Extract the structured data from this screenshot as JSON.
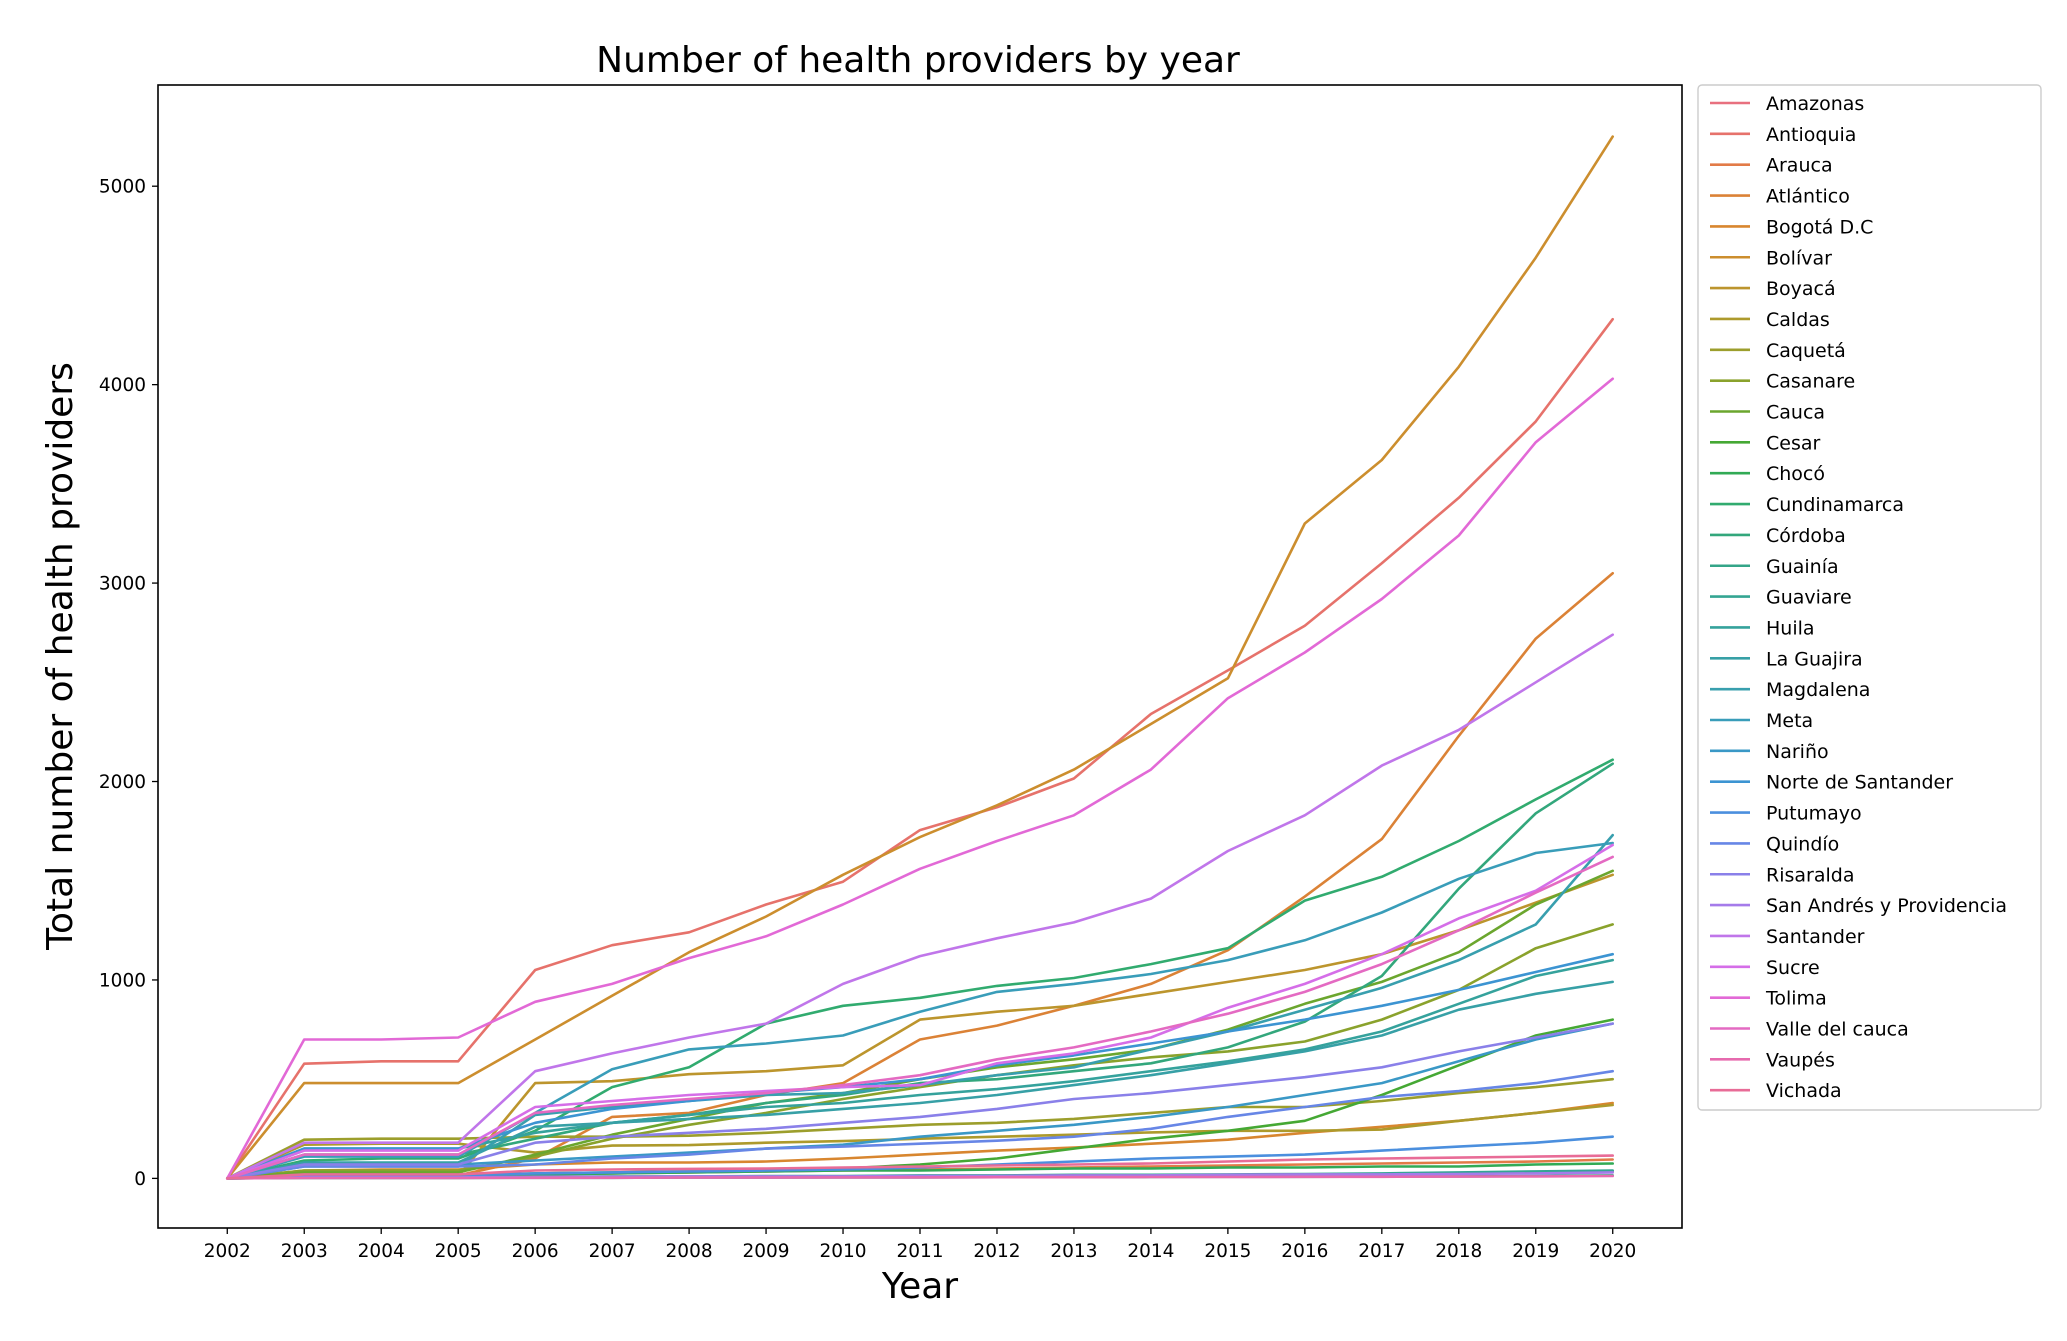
{
  "chart_data": {
    "type": "line",
    "title": "Number of health providers by year",
    "xlabel": "Year",
    "ylabel": "Total number of health providers",
    "x": [
      2002,
      2003,
      2004,
      2005,
      2006,
      2007,
      2008,
      2009,
      2010,
      2011,
      2012,
      2013,
      2014,
      2015,
      2016,
      2017,
      2018,
      2019,
      2020
    ],
    "xlim": [
      2001.1,
      2020.9
    ],
    "ylim": [
      -250,
      5510
    ],
    "yticks": [
      0,
      1000,
      2000,
      3000,
      4000,
      5000
    ],
    "grid": false,
    "legend_position": "outside-right",
    "series": [
      {
        "name": "Amazonas",
        "color": "#e8707f",
        "values": [
          0,
          3,
          3,
          3,
          5,
          6,
          7,
          8,
          9,
          10,
          11,
          12,
          13,
          15,
          18,
          20,
          25,
          30,
          35
        ]
      },
      {
        "name": "Antioquia",
        "color": "#e6726b",
        "values": [
          0,
          578,
          590,
          590,
          1050,
          1175,
          1240,
          1380,
          1495,
          1755,
          1870,
          2015,
          2340,
          2560,
          2785,
          3100,
          3430,
          3815,
          4330
        ]
      },
      {
        "name": "Arauca",
        "color": "#e27b48",
        "values": [
          0,
          10,
          10,
          10,
          20,
          25,
          30,
          35,
          40,
          45,
          50,
          55,
          60,
          65,
          70,
          75,
          80,
          85,
          95
        ]
      },
      {
        "name": "Atlántico",
        "color": "#db8236",
        "values": [
          0,
          15,
          15,
          15,
          100,
          310,
          330,
          420,
          480,
          700,
          770,
          870,
          980,
          1150,
          1420,
          1710,
          2230,
          2720,
          3050
        ]
      },
      {
        "name": "Bogotá D.C",
        "color": "#d8862f",
        "values": [
          0,
          40,
          45,
          45,
          70,
          80,
          80,
          85,
          100,
          120,
          140,
          155,
          175,
          195,
          230,
          260,
          290,
          330,
          380
        ]
      },
      {
        "name": "Bolívar",
        "color": "#cc8e2e",
        "values": [
          0,
          480,
          480,
          480,
          700,
          920,
          1140,
          1320,
          1530,
          1720,
          1880,
          2060,
          2290,
          2520,
          3300,
          3620,
          4090,
          4640,
          5250
        ]
      },
      {
        "name": "Boyacá",
        "color": "#bc952d",
        "values": [
          0,
          10,
          10,
          10,
          480,
          490,
          525,
          540,
          570,
          800,
          840,
          870,
          930,
          990,
          1050,
          1130,
          1250,
          1390,
          1530
        ]
      },
      {
        "name": "Caldas",
        "color": "#ad9a2c",
        "values": [
          0,
          170,
          175,
          175,
          130,
          165,
          168,
          180,
          188,
          200,
          210,
          220,
          232,
          240,
          240,
          246,
          290,
          330,
          370
        ]
      },
      {
        "name": "Caquetá",
        "color": "#9c9e2c",
        "values": [
          0,
          195,
          200,
          200,
          210,
          210,
          215,
          230,
          250,
          270,
          280,
          300,
          330,
          360,
          360,
          390,
          430,
          460,
          500
        ]
      },
      {
        "name": "Casanare",
        "color": "#8aa22c",
        "values": [
          0,
          40,
          40,
          40,
          110,
          200,
          270,
          330,
          400,
          460,
          520,
          570,
          610,
          640,
          690,
          800,
          950,
          1160,
          1280
        ]
      },
      {
        "name": "Cauca",
        "color": "#6ba62e",
        "values": [
          0,
          30,
          30,
          30,
          120,
          220,
          300,
          380,
          430,
          500,
          560,
          600,
          650,
          750,
          880,
          990,
          1140,
          1380,
          1550
        ]
      },
      {
        "name": "Cesar",
        "color": "#45a834",
        "values": [
          0,
          15,
          15,
          15,
          25,
          30,
          35,
          40,
          50,
          70,
          100,
          150,
          200,
          240,
          290,
          420,
          570,
          720,
          800
        ]
      },
      {
        "name": "Chocó",
        "color": "#31aa55",
        "values": [
          0,
          5,
          5,
          5,
          20,
          25,
          30,
          35,
          40,
          40,
          45,
          50,
          50,
          55,
          55,
          60,
          60,
          70,
          75
        ]
      },
      {
        "name": "Cundinamarca",
        "color": "#31ab6f",
        "values": [
          0,
          90,
          100,
          100,
          240,
          460,
          560,
          780,
          870,
          910,
          970,
          1010,
          1080,
          1160,
          1400,
          1520,
          1700,
          1910,
          2110
        ]
      },
      {
        "name": "Córdoba",
        "color": "#33a77c",
        "values": [
          0,
          120,
          120,
          120,
          200,
          280,
          320,
          380,
          420,
          480,
          500,
          540,
          580,
          660,
          790,
          1020,
          1460,
          1840,
          2090
        ]
      },
      {
        "name": "Guainía",
        "color": "#34a588",
        "values": [
          0,
          2,
          2,
          2,
          3,
          3,
          4,
          4,
          5,
          5,
          6,
          6,
          7,
          8,
          8,
          9,
          10,
          12,
          15
        ]
      },
      {
        "name": "Guaviare",
        "color": "#34a592",
        "values": [
          0,
          5,
          5,
          5,
          8,
          10,
          10,
          12,
          12,
          15,
          15,
          18,
          18,
          20,
          22,
          25,
          30,
          35,
          40
        ]
      },
      {
        "name": "Huila",
        "color": "#35a29c",
        "values": [
          0,
          150,
          150,
          150,
          230,
          280,
          320,
          360,
          380,
          420,
          450,
          490,
          540,
          590,
          650,
          740,
          880,
          1020,
          1100
        ]
      },
      {
        "name": "La Guajira",
        "color": "#37a0a6",
        "values": [
          0,
          80,
          80,
          80,
          260,
          280,
          300,
          320,
          350,
          380,
          420,
          470,
          520,
          580,
          640,
          720,
          850,
          930,
          990
        ]
      },
      {
        "name": "Magdalena",
        "color": "#389fae",
        "values": [
          0,
          60,
          60,
          60,
          320,
          360,
          390,
          420,
          430,
          470,
          520,
          560,
          650,
          740,
          850,
          960,
          1100,
          1280,
          1730
        ]
      },
      {
        "name": "Meta",
        "color": "#399db9",
        "values": [
          0,
          110,
          110,
          110,
          330,
          550,
          650,
          680,
          720,
          840,
          940,
          980,
          1030,
          1100,
          1200,
          1340,
          1510,
          1640,
          1690
        ]
      },
      {
        "name": "Nariño",
        "color": "#3a98c6",
        "values": [
          0,
          70,
          70,
          70,
          90,
          110,
          130,
          150,
          170,
          210,
          240,
          270,
          310,
          360,
          420,
          480,
          590,
          700,
          780
        ]
      },
      {
        "name": "Norte de Santander",
        "color": "#3c94d2",
        "values": [
          0,
          150,
          150,
          150,
          280,
          350,
          390,
          430,
          460,
          500,
          570,
          620,
          680,
          740,
          800,
          870,
          950,
          1040,
          1130
        ]
      },
      {
        "name": "Putumayo",
        "color": "#4b8fde",
        "values": [
          0,
          15,
          15,
          15,
          25,
          30,
          35,
          40,
          45,
          55,
          70,
          85,
          100,
          110,
          120,
          140,
          160,
          180,
          210
        ]
      },
      {
        "name": "Quindío",
        "color": "#6786e6",
        "values": [
          0,
          60,
          60,
          60,
          70,
          100,
          120,
          150,
          160,
          175,
          190,
          210,
          250,
          310,
          360,
          410,
          440,
          480,
          540
        ]
      },
      {
        "name": "Risaralda",
        "color": "#8a80e9",
        "values": [
          0,
          70,
          70,
          70,
          180,
          210,
          230,
          250,
          280,
          310,
          350,
          400,
          430,
          470,
          510,
          560,
          640,
          710,
          780
        ]
      },
      {
        "name": "San Andrés y Providencia",
        "color": "#a57bea",
        "values": [
          0,
          5,
          5,
          5,
          8,
          8,
          10,
          10,
          10,
          12,
          12,
          15,
          15,
          18,
          20,
          20,
          22,
          25,
          30
        ]
      },
      {
        "name": "Santander",
        "color": "#c076ea",
        "values": [
          0,
          180,
          180,
          180,
          540,
          630,
          710,
          780,
          980,
          1120,
          1210,
          1290,
          1410,
          1650,
          1830,
          2080,
          2260,
          2500,
          2740
        ]
      },
      {
        "name": "Sucre",
        "color": "#d56ee8",
        "values": [
          0,
          140,
          140,
          140,
          360,
          390,
          420,
          440,
          460,
          470,
          580,
          630,
          710,
          860,
          980,
          1130,
          1310,
          1450,
          1680
        ]
      },
      {
        "name": "Tolima",
        "color": "#e269d6",
        "values": [
          0,
          700,
          700,
          710,
          890,
          980,
          1110,
          1220,
          1380,
          1560,
          1700,
          1830,
          2060,
          2420,
          2650,
          2920,
          3240,
          3710,
          4030
        ]
      },
      {
        "name": "Valle del cauca",
        "color": "#e46ac2",
        "values": [
          0,
          120,
          120,
          120,
          330,
          370,
          400,
          430,
          470,
          520,
          600,
          660,
          740,
          830,
          940,
          1080,
          1250,
          1440,
          1620
        ]
      },
      {
        "name": "Vaupés",
        "color": "#e66aae",
        "values": [
          0,
          2,
          2,
          2,
          3,
          3,
          4,
          4,
          5,
          5,
          6,
          6,
          7,
          7,
          8,
          8,
          9,
          10,
          12
        ]
      },
      {
        "name": "Vichada",
        "color": "#e86c97",
        "values": [
          0,
          20,
          20,
          20,
          40,
          45,
          48,
          50,
          55,
          60,
          65,
          70,
          75,
          85,
          95,
          100,
          105,
          110,
          115
        ]
      }
    ]
  }
}
